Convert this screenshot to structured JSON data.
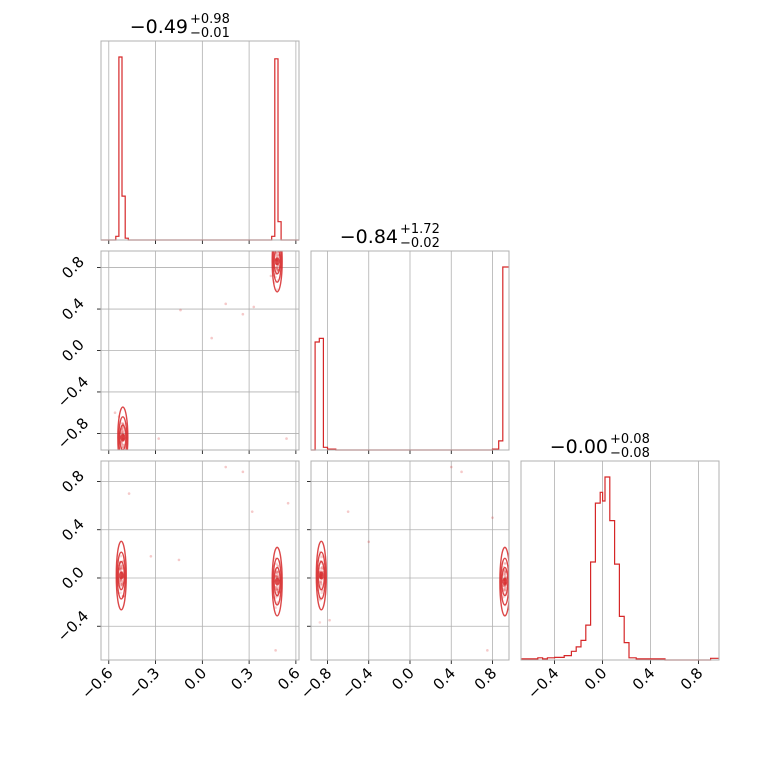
{
  "chart_data": [
    {
      "type": "histogram",
      "panel": "p00",
      "title": {
        "value": "−0.49",
        "plus": "+0.98",
        "minus": "−0.01"
      },
      "color": "#d62728",
      "xlim": [
        -0.65,
        0.62
      ],
      "bins": [
        [
          -0.65,
          -0.555,
          0
        ],
        [
          -0.555,
          -0.535,
          0.02
        ],
        [
          -0.535,
          -0.515,
          1.0
        ],
        [
          -0.515,
          -0.495,
          0.24
        ],
        [
          -0.495,
          -0.475,
          0.01
        ],
        [
          -0.475,
          0.445,
          0
        ],
        [
          0.445,
          0.465,
          0.02
        ],
        [
          0.465,
          0.485,
          0.99
        ],
        [
          0.485,
          0.505,
          0.1
        ],
        [
          0.505,
          0.62,
          0
        ]
      ]
    },
    {
      "type": "scatter",
      "panel": "p10",
      "xlim": [
        -0.65,
        0.62
      ],
      "ylim": [
        -0.96,
        0.96
      ],
      "xticks": [
        -0.6,
        -0.3,
        0.0,
        0.3,
        0.6
      ],
      "xtick_labels": [
        "−0.6",
        "−0.3",
        "0.0",
        "0.3",
        "0.6"
      ],
      "yticks": [
        0.8,
        0.4,
        0.0,
        -0.4,
        -0.8
      ],
      "ytick_labels": [
        "0.8",
        "0.4",
        "0.0",
        "−0.4",
        "−0.8"
      ],
      "clusters": [
        {
          "x": -0.51,
          "y": -0.84
        },
        {
          "x": 0.48,
          "y": 0.86
        }
      ],
      "outliers": [
        [
          -0.14,
          0.39
        ],
        [
          0.15,
          0.45
        ],
        [
          0.26,
          0.35
        ],
        [
          0.33,
          0.42
        ],
        [
          0.44,
          0.72
        ],
        [
          -0.28,
          -0.85
        ],
        [
          -0.56,
          -0.6
        ],
        [
          0.54,
          -0.85
        ],
        [
          0.06,
          0.12
        ]
      ]
    },
    {
      "type": "histogram",
      "panel": "p11",
      "title": {
        "value": "−0.84",
        "plus": "+1.72",
        "minus": "−0.02"
      },
      "color": "#d62728",
      "xlim": [
        -0.96,
        0.96
      ],
      "bins": [
        [
          -0.96,
          -0.92,
          0
        ],
        [
          -0.92,
          -0.88,
          0.59
        ],
        [
          -0.88,
          -0.84,
          0.61
        ],
        [
          -0.84,
          -0.8,
          0.015
        ],
        [
          -0.8,
          -0.72,
          0.005
        ],
        [
          -0.72,
          0.8,
          0
        ],
        [
          0.8,
          0.86,
          0.005
        ],
        [
          0.86,
          0.9,
          0.05
        ],
        [
          0.9,
          0.96,
          1.0
        ]
      ]
    },
    {
      "type": "scatter",
      "panel": "p20",
      "xlim": [
        -0.65,
        0.62
      ],
      "ylim": [
        -0.68,
        0.97
      ],
      "yticks": [
        0.8,
        0.4,
        0.0,
        -0.4
      ],
      "ytick_labels": [
        "0.8",
        "0.4",
        "0.0",
        "−0.4"
      ],
      "clusters": [
        {
          "x": -0.52,
          "y": 0.02
        },
        {
          "x": 0.48,
          "y": -0.03
        }
      ],
      "outliers": [
        [
          -0.47,
          0.7
        ],
        [
          -0.33,
          0.18
        ],
        [
          -0.15,
          0.15
        ],
        [
          0.15,
          0.92
        ],
        [
          0.26,
          0.88
        ],
        [
          0.32,
          0.55
        ],
        [
          0.55,
          0.62
        ],
        [
          0.47,
          -0.6
        ]
      ]
    },
    {
      "type": "scatter",
      "panel": "p21",
      "xlim": [
        -0.96,
        0.96
      ],
      "ylim": [
        -0.68,
        0.97
      ],
      "xticks": [
        -0.8,
        -0.4,
        0.0,
        0.4,
        0.8
      ],
      "xtick_labels": [
        "−0.8",
        "−0.4",
        "0.0",
        "0.4",
        "0.8"
      ],
      "clusters": [
        {
          "x": -0.86,
          "y": 0.02
        },
        {
          "x": 0.92,
          "y": -0.03
        }
      ],
      "outliers": [
        [
          -0.6,
          0.55
        ],
        [
          -0.4,
          0.3
        ],
        [
          0.4,
          0.92
        ],
        [
          0.5,
          0.88
        ],
        [
          0.8,
          0.5
        ],
        [
          0.75,
          -0.6
        ],
        [
          -0.78,
          -0.35
        ]
      ]
    },
    {
      "type": "histogram",
      "panel": "p22",
      "title": {
        "value": "−0.00",
        "plus": "+0.08",
        "minus": "−0.08"
      },
      "color": "#d62728",
      "xlim": [
        -0.68,
        0.97
      ],
      "xticks": [
        -0.4,
        0.0,
        0.4,
        0.8
      ],
      "xtick_labels": [
        "−0.4",
        "0.0",
        "0.4",
        "0.8"
      ],
      "bins": [
        [
          -0.68,
          -0.54,
          0.005
        ],
        [
          -0.54,
          -0.5,
          0.01
        ],
        [
          -0.5,
          -0.46,
          0.005
        ],
        [
          -0.46,
          -0.4,
          0.01
        ],
        [
          -0.4,
          -0.32,
          0.012
        ],
        [
          -0.32,
          -0.26,
          0.02
        ],
        [
          -0.26,
          -0.22,
          0.04
        ],
        [
          -0.22,
          -0.18,
          0.06
        ],
        [
          -0.18,
          -0.14,
          0.09
        ],
        [
          -0.14,
          -0.1,
          0.16
        ],
        [
          -0.1,
          -0.06,
          0.45
        ],
        [
          -0.06,
          -0.02,
          0.72
        ],
        [
          -0.02,
          0.0,
          0.77
        ],
        [
          0.0,
          0.02,
          0.73
        ],
        [
          0.02,
          0.06,
          0.84
        ],
        [
          0.06,
          0.1,
          0.64
        ],
        [
          0.1,
          0.14,
          0.44
        ],
        [
          0.14,
          0.18,
          0.2
        ],
        [
          0.18,
          0.22,
          0.08
        ],
        [
          0.22,
          0.28,
          0.01
        ],
        [
          0.28,
          0.4,
          0.005
        ],
        [
          0.4,
          0.52,
          0.005
        ],
        [
          0.52,
          0.9,
          0
        ],
        [
          0.9,
          0.97,
          0.008
        ]
      ]
    }
  ]
}
